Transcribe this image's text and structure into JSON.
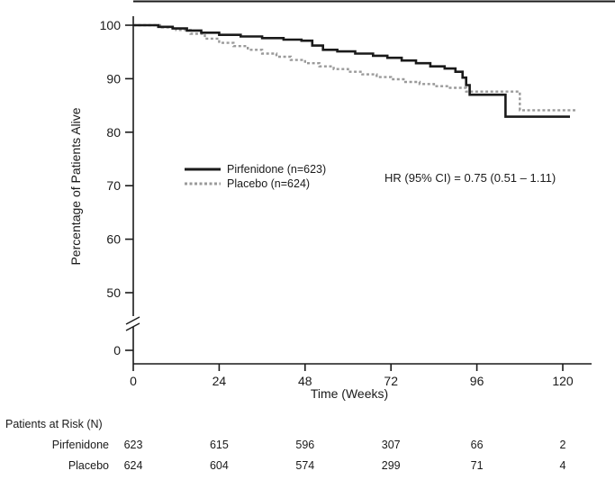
{
  "figure": {
    "background": "#ffffff"
  },
  "chart_data": {
    "type": "line",
    "subtype": "kaplan-meier-survival-step",
    "title": "",
    "xlabel": "Time (Weeks)",
    "ylabel": "Percentage of Patients Alive",
    "x_ticks": [
      0,
      24,
      48,
      72,
      96,
      120
    ],
    "xlim": [
      0,
      128
    ],
    "y_ticks": [
      100,
      90,
      80,
      70,
      60,
      50,
      0
    ],
    "y_axis_break_between": [
      50,
      0
    ],
    "grid": false,
    "legend_position": "inside-left-middle",
    "annotation": "HR (95% CI) = 0.75 (0.51 – 1.11)",
    "legend": [
      {
        "label": "Pirfenidone (n=623)",
        "color": "#1a1a1a",
        "line_style": "solid"
      },
      {
        "label": "Placebo (n=624)",
        "color": "#9a9a9a",
        "line_style": "dashed"
      }
    ],
    "series": [
      {
        "name": "Pirfenidone",
        "color": "#1a1a1a",
        "line_style": "solid",
        "points": [
          [
            0,
            100
          ],
          [
            7,
            99.7
          ],
          [
            11,
            99.4
          ],
          [
            15,
            99.0
          ],
          [
            19,
            98.6
          ],
          [
            24,
            98.2
          ],
          [
            30,
            97.9
          ],
          [
            36,
            97.6
          ],
          [
            42,
            97.3
          ],
          [
            47,
            97.1
          ],
          [
            50,
            96.2
          ],
          [
            53,
            95.4
          ],
          [
            57,
            95.1
          ],
          [
            62,
            94.7
          ],
          [
            67,
            94.3
          ],
          [
            71,
            93.9
          ],
          [
            75,
            93.4
          ],
          [
            79,
            92.9
          ],
          [
            83,
            92.3
          ],
          [
            87,
            91.9
          ],
          [
            90,
            91.3
          ],
          [
            92,
            90.2
          ],
          [
            93,
            88.8
          ],
          [
            94,
            87.0
          ],
          [
            104,
            82.9
          ],
          [
            122,
            82.9
          ]
        ]
      },
      {
        "name": "Placebo",
        "color": "#9a9a9a",
        "line_style": "dashed",
        "points": [
          [
            0,
            100
          ],
          [
            8,
            99.6
          ],
          [
            12,
            99.1
          ],
          [
            16,
            98.4
          ],
          [
            20,
            97.5
          ],
          [
            24,
            96.7
          ],
          [
            28,
            96.1
          ],
          [
            32,
            95.4
          ],
          [
            36,
            94.7
          ],
          [
            40,
            94.1
          ],
          [
            44,
            93.5
          ],
          [
            48,
            92.9
          ],
          [
            52,
            92.3
          ],
          [
            56,
            91.8
          ],
          [
            60,
            91.3
          ],
          [
            64,
            90.8
          ],
          [
            68,
            90.3
          ],
          [
            72,
            89.9
          ],
          [
            76,
            89.4
          ],
          [
            80,
            89.0
          ],
          [
            84,
            88.6
          ],
          [
            88,
            88.3
          ],
          [
            93,
            87.6
          ],
          [
            108,
            84.1
          ],
          [
            124,
            84.1
          ]
        ]
      }
    ]
  },
  "risk_table": {
    "title": "Patients at Risk (N)",
    "time_points": [
      0,
      24,
      48,
      72,
      96,
      120
    ],
    "rows": [
      {
        "label": "Pirfenidone",
        "counts": [
          "623",
          "615",
          "596",
          "307",
          "66",
          "2"
        ]
      },
      {
        "label": "Placebo",
        "counts": [
          "624",
          "604",
          "574",
          "299",
          "71",
          "4"
        ]
      }
    ]
  }
}
